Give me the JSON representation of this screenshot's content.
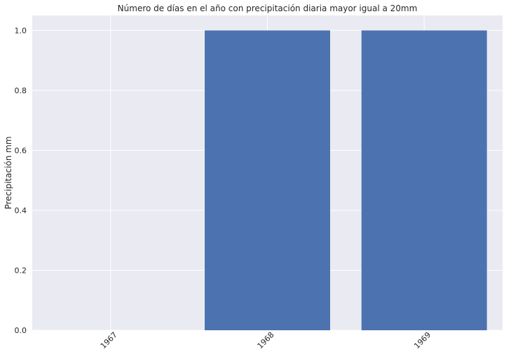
{
  "chart_data": {
    "type": "bar",
    "title": "Número de días en el año con precipitación diaria mayor igual a 20mm",
    "xlabel": "",
    "ylabel": "Precipitación mm",
    "categories": [
      "1967",
      "1968",
      "1969"
    ],
    "values": [
      0,
      1,
      1
    ],
    "ylim": [
      0,
      1.05
    ],
    "yticks": [
      "0.0",
      "0.2",
      "0.4",
      "0.6",
      "0.8",
      "1.0"
    ],
    "grid": true,
    "bar_color": "#4c72b0",
    "background_color": "#eaeaf2",
    "grid_color": "#ffffff"
  }
}
